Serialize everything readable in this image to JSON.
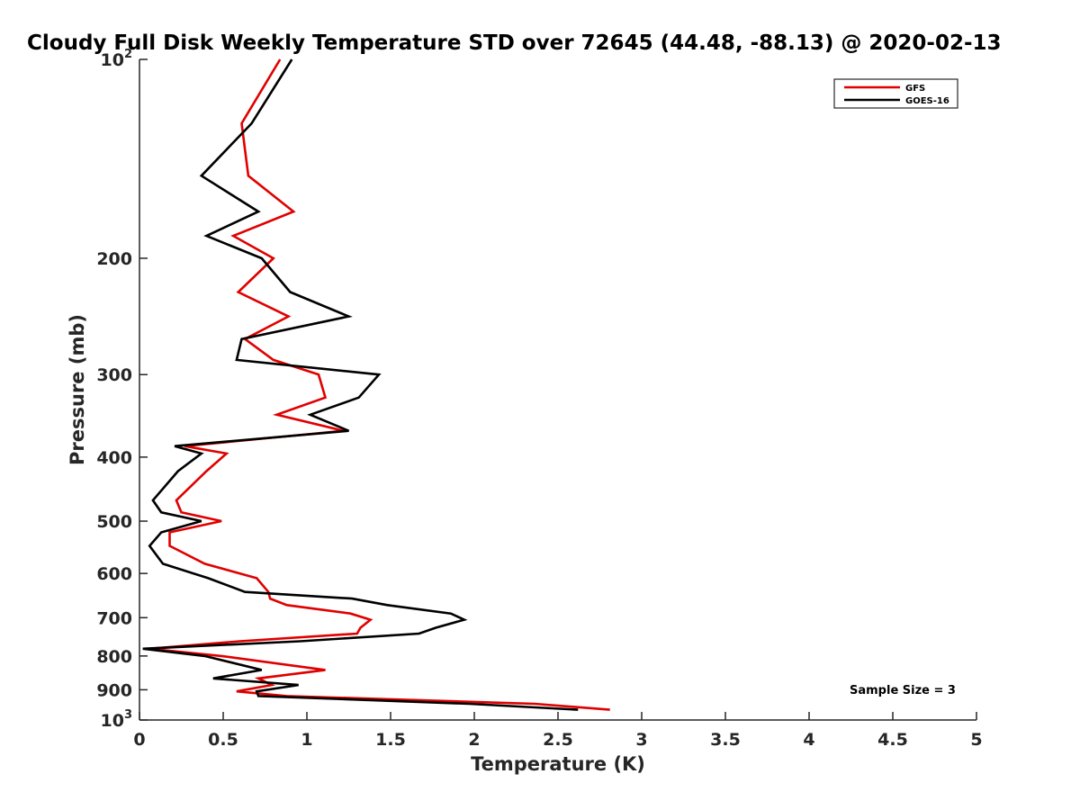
{
  "chart_data": {
    "type": "line",
    "title": "Cloudy Full Disk Weekly Temperature STD over 72645 (44.48, -88.13) @ 2020-02-13",
    "xlabel": "Temperature (K)",
    "ylabel": "Pressure (mb)",
    "xlim": [
      0,
      5
    ],
    "ylim": [
      100,
      1000
    ],
    "y_scale": "log",
    "y_reversed": true,
    "x_ticks": [
      0,
      0.5,
      1,
      1.5,
      2,
      2.5,
      3,
      3.5,
      4,
      4.5,
      5
    ],
    "x_tick_labels": [
      "0",
      "0.5",
      "1",
      "1.5",
      "2",
      "2.5",
      "3",
      "3.5",
      "4",
      "4.5",
      "5"
    ],
    "y_ticks": [
      100,
      200,
      300,
      400,
      500,
      600,
      700,
      800,
      900,
      1000
    ],
    "y_tick_labels": [
      {
        "base": "10",
        "exp": "2"
      },
      {
        "base": "200"
      },
      {
        "base": "300"
      },
      {
        "base": "400"
      },
      {
        "base": "500"
      },
      {
        "base": "600"
      },
      {
        "base": "700"
      },
      {
        "base": "800"
      },
      {
        "base": "900"
      },
      {
        "base": "10",
        "exp": "3"
      }
    ],
    "grid": false,
    "legend_position": "top-right",
    "annotation": "Sample Size = 3",
    "series": [
      {
        "name": "GFS",
        "color": "#e00000",
        "points": [
          [
            0.84,
            100
          ],
          [
            0.61,
            125
          ],
          [
            0.65,
            150
          ],
          [
            0.92,
            170
          ],
          [
            0.56,
            185
          ],
          [
            0.8,
            200
          ],
          [
            0.59,
            225
          ],
          [
            0.89,
            245
          ],
          [
            0.63,
            265
          ],
          [
            0.8,
            285
          ],
          [
            1.07,
            300
          ],
          [
            1.11,
            325
          ],
          [
            0.82,
            345
          ],
          [
            1.22,
            365
          ],
          [
            0.27,
            385
          ],
          [
            0.52,
            395
          ],
          [
            0.4,
            420
          ],
          [
            0.22,
            465
          ],
          [
            0.25,
            485
          ],
          [
            0.49,
            500
          ],
          [
            0.18,
            520
          ],
          [
            0.18,
            545
          ],
          [
            0.39,
            580
          ],
          [
            0.7,
            610
          ],
          [
            0.77,
            640
          ],
          [
            0.78,
            655
          ],
          [
            0.88,
            670
          ],
          [
            1.26,
            690
          ],
          [
            1.38,
            705
          ],
          [
            1.32,
            725
          ],
          [
            1.3,
            740
          ],
          [
            0.6,
            760
          ],
          [
            0.06,
            780
          ],
          [
            0.49,
            800
          ],
          [
            1.11,
            840
          ],
          [
            0.71,
            865
          ],
          [
            0.79,
            885
          ],
          [
            0.58,
            905
          ],
          [
            0.88,
            920
          ],
          [
            2.36,
            945
          ],
          [
            2.81,
            965
          ]
        ]
      },
      {
        "name": "GOES-16",
        "color": "#000000",
        "points": [
          [
            0.91,
            100
          ],
          [
            0.67,
            125
          ],
          [
            0.37,
            150
          ],
          [
            0.71,
            170
          ],
          [
            0.4,
            185
          ],
          [
            0.73,
            200
          ],
          [
            0.9,
            225
          ],
          [
            1.25,
            245
          ],
          [
            0.61,
            265
          ],
          [
            0.58,
            285
          ],
          [
            1.43,
            300
          ],
          [
            1.31,
            325
          ],
          [
            1.02,
            345
          ],
          [
            1.25,
            365
          ],
          [
            0.21,
            385
          ],
          [
            0.37,
            395
          ],
          [
            0.23,
            420
          ],
          [
            0.08,
            465
          ],
          [
            0.13,
            485
          ],
          [
            0.37,
            500
          ],
          [
            0.13,
            520
          ],
          [
            0.06,
            545
          ],
          [
            0.14,
            580
          ],
          [
            0.41,
            610
          ],
          [
            0.63,
            640
          ],
          [
            1.27,
            655
          ],
          [
            1.48,
            670
          ],
          [
            1.86,
            690
          ],
          [
            1.94,
            705
          ],
          [
            1.77,
            725
          ],
          [
            1.67,
            740
          ],
          [
            0.96,
            760
          ],
          [
            0.02,
            780
          ],
          [
            0.39,
            800
          ],
          [
            0.73,
            840
          ],
          [
            0.44,
            865
          ],
          [
            0.95,
            885
          ],
          [
            0.7,
            905
          ],
          [
            0.71,
            920
          ],
          [
            1.97,
            945
          ],
          [
            2.62,
            965
          ]
        ]
      }
    ]
  }
}
